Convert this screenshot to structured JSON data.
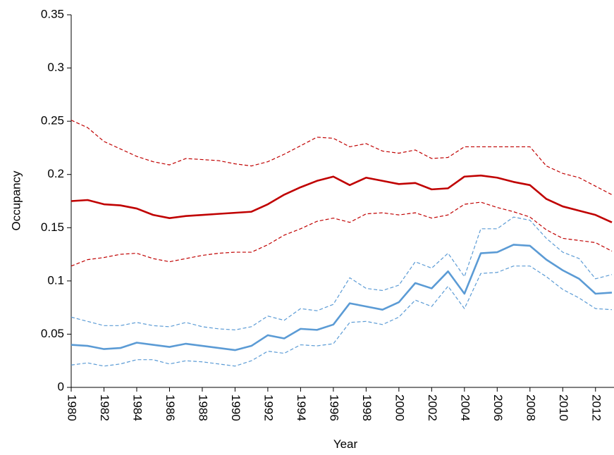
{
  "chart_data": {
    "type": "line",
    "x_label": "Year",
    "y_label": "Occupancy",
    "x": [
      1980,
      1981,
      1982,
      1983,
      1984,
      1985,
      1986,
      1987,
      1988,
      1989,
      1990,
      1991,
      1992,
      1993,
      1994,
      1995,
      1996,
      1997,
      1998,
      1999,
      2000,
      2001,
      2002,
      2003,
      2004,
      2005,
      2006,
      2007,
      2008,
      2009,
      2010,
      2011,
      2012,
      2013
    ],
    "series": [
      {
        "color": "#c00000",
        "dashed": false,
        "values": [
          0.175,
          0.176,
          0.172,
          0.171,
          0.168,
          0.162,
          0.159,
          0.161,
          0.162,
          0.163,
          0.164,
          0.165,
          0.172,
          0.181,
          0.188,
          0.194,
          0.198,
          0.19,
          0.197,
          0.194,
          0.191,
          0.192,
          0.186,
          0.187,
          0.198,
          0.199,
          0.197,
          0.193,
          0.19,
          0.177,
          0.17,
          0.166,
          0.162,
          0.155
        ]
      },
      {
        "color": "#c00000",
        "dashed": true,
        "values": [
          0.251,
          0.244,
          0.231,
          0.224,
          0.217,
          0.212,
          0.209,
          0.215,
          0.214,
          0.213,
          0.21,
          0.208,
          0.212,
          0.219,
          0.227,
          0.235,
          0.234,
          0.226,
          0.229,
          0.222,
          0.22,
          0.223,
          0.215,
          0.216,
          0.226,
          0.226,
          0.226,
          0.226,
          0.226,
          0.208,
          0.201,
          0.197,
          0.189,
          0.181
        ]
      },
      {
        "color": "#c00000",
        "dashed": true,
        "values": [
          0.114,
          0.12,
          0.122,
          0.125,
          0.126,
          0.121,
          0.118,
          0.121,
          0.124,
          0.126,
          0.127,
          0.127,
          0.134,
          0.143,
          0.149,
          0.156,
          0.159,
          0.155,
          0.163,
          0.164,
          0.162,
          0.164,
          0.159,
          0.162,
          0.172,
          0.174,
          0.169,
          0.165,
          0.16,
          0.148,
          0.14,
          0.138,
          0.136,
          0.128
        ]
      },
      {
        "color": "#5b9bd5",
        "dashed": false,
        "values": [
          0.04,
          0.039,
          0.036,
          0.037,
          0.042,
          0.04,
          0.038,
          0.041,
          0.039,
          0.037,
          0.035,
          0.039,
          0.049,
          0.046,
          0.055,
          0.054,
          0.059,
          0.079,
          0.076,
          0.073,
          0.08,
          0.098,
          0.093,
          0.109,
          0.088,
          0.126,
          0.127,
          0.134,
          0.133,
          0.12,
          0.11,
          0.102,
          0.088,
          0.089
        ]
      },
      {
        "color": "#5b9bd5",
        "dashed": true,
        "values": [
          0.066,
          0.062,
          0.058,
          0.058,
          0.061,
          0.058,
          0.057,
          0.061,
          0.057,
          0.055,
          0.054,
          0.057,
          0.067,
          0.063,
          0.074,
          0.072,
          0.078,
          0.103,
          0.093,
          0.091,
          0.096,
          0.118,
          0.112,
          0.126,
          0.104,
          0.149,
          0.149,
          0.16,
          0.157,
          0.14,
          0.127,
          0.121,
          0.102,
          0.106
        ]
      },
      {
        "color": "#5b9bd5",
        "dashed": true,
        "values": [
          0.021,
          0.023,
          0.02,
          0.022,
          0.026,
          0.026,
          0.022,
          0.025,
          0.024,
          0.022,
          0.02,
          0.025,
          0.034,
          0.032,
          0.04,
          0.039,
          0.041,
          0.061,
          0.062,
          0.059,
          0.066,
          0.082,
          0.076,
          0.095,
          0.074,
          0.107,
          0.108,
          0.114,
          0.114,
          0.104,
          0.092,
          0.084,
          0.074,
          0.073
        ]
      }
    ],
    "xlim": [
      1980,
      2013
    ],
    "xticks": [
      1980,
      1982,
      1984,
      1986,
      1988,
      1990,
      1992,
      1994,
      1996,
      1998,
      2000,
      2002,
      2004,
      2006,
      2008,
      2010,
      2012
    ],
    "ylim": [
      0,
      0.35
    ],
    "yticks": [
      0,
      0.05,
      0.1,
      0.15,
      0.2,
      0.25,
      0.3,
      0.35
    ],
    "grid": false
  }
}
